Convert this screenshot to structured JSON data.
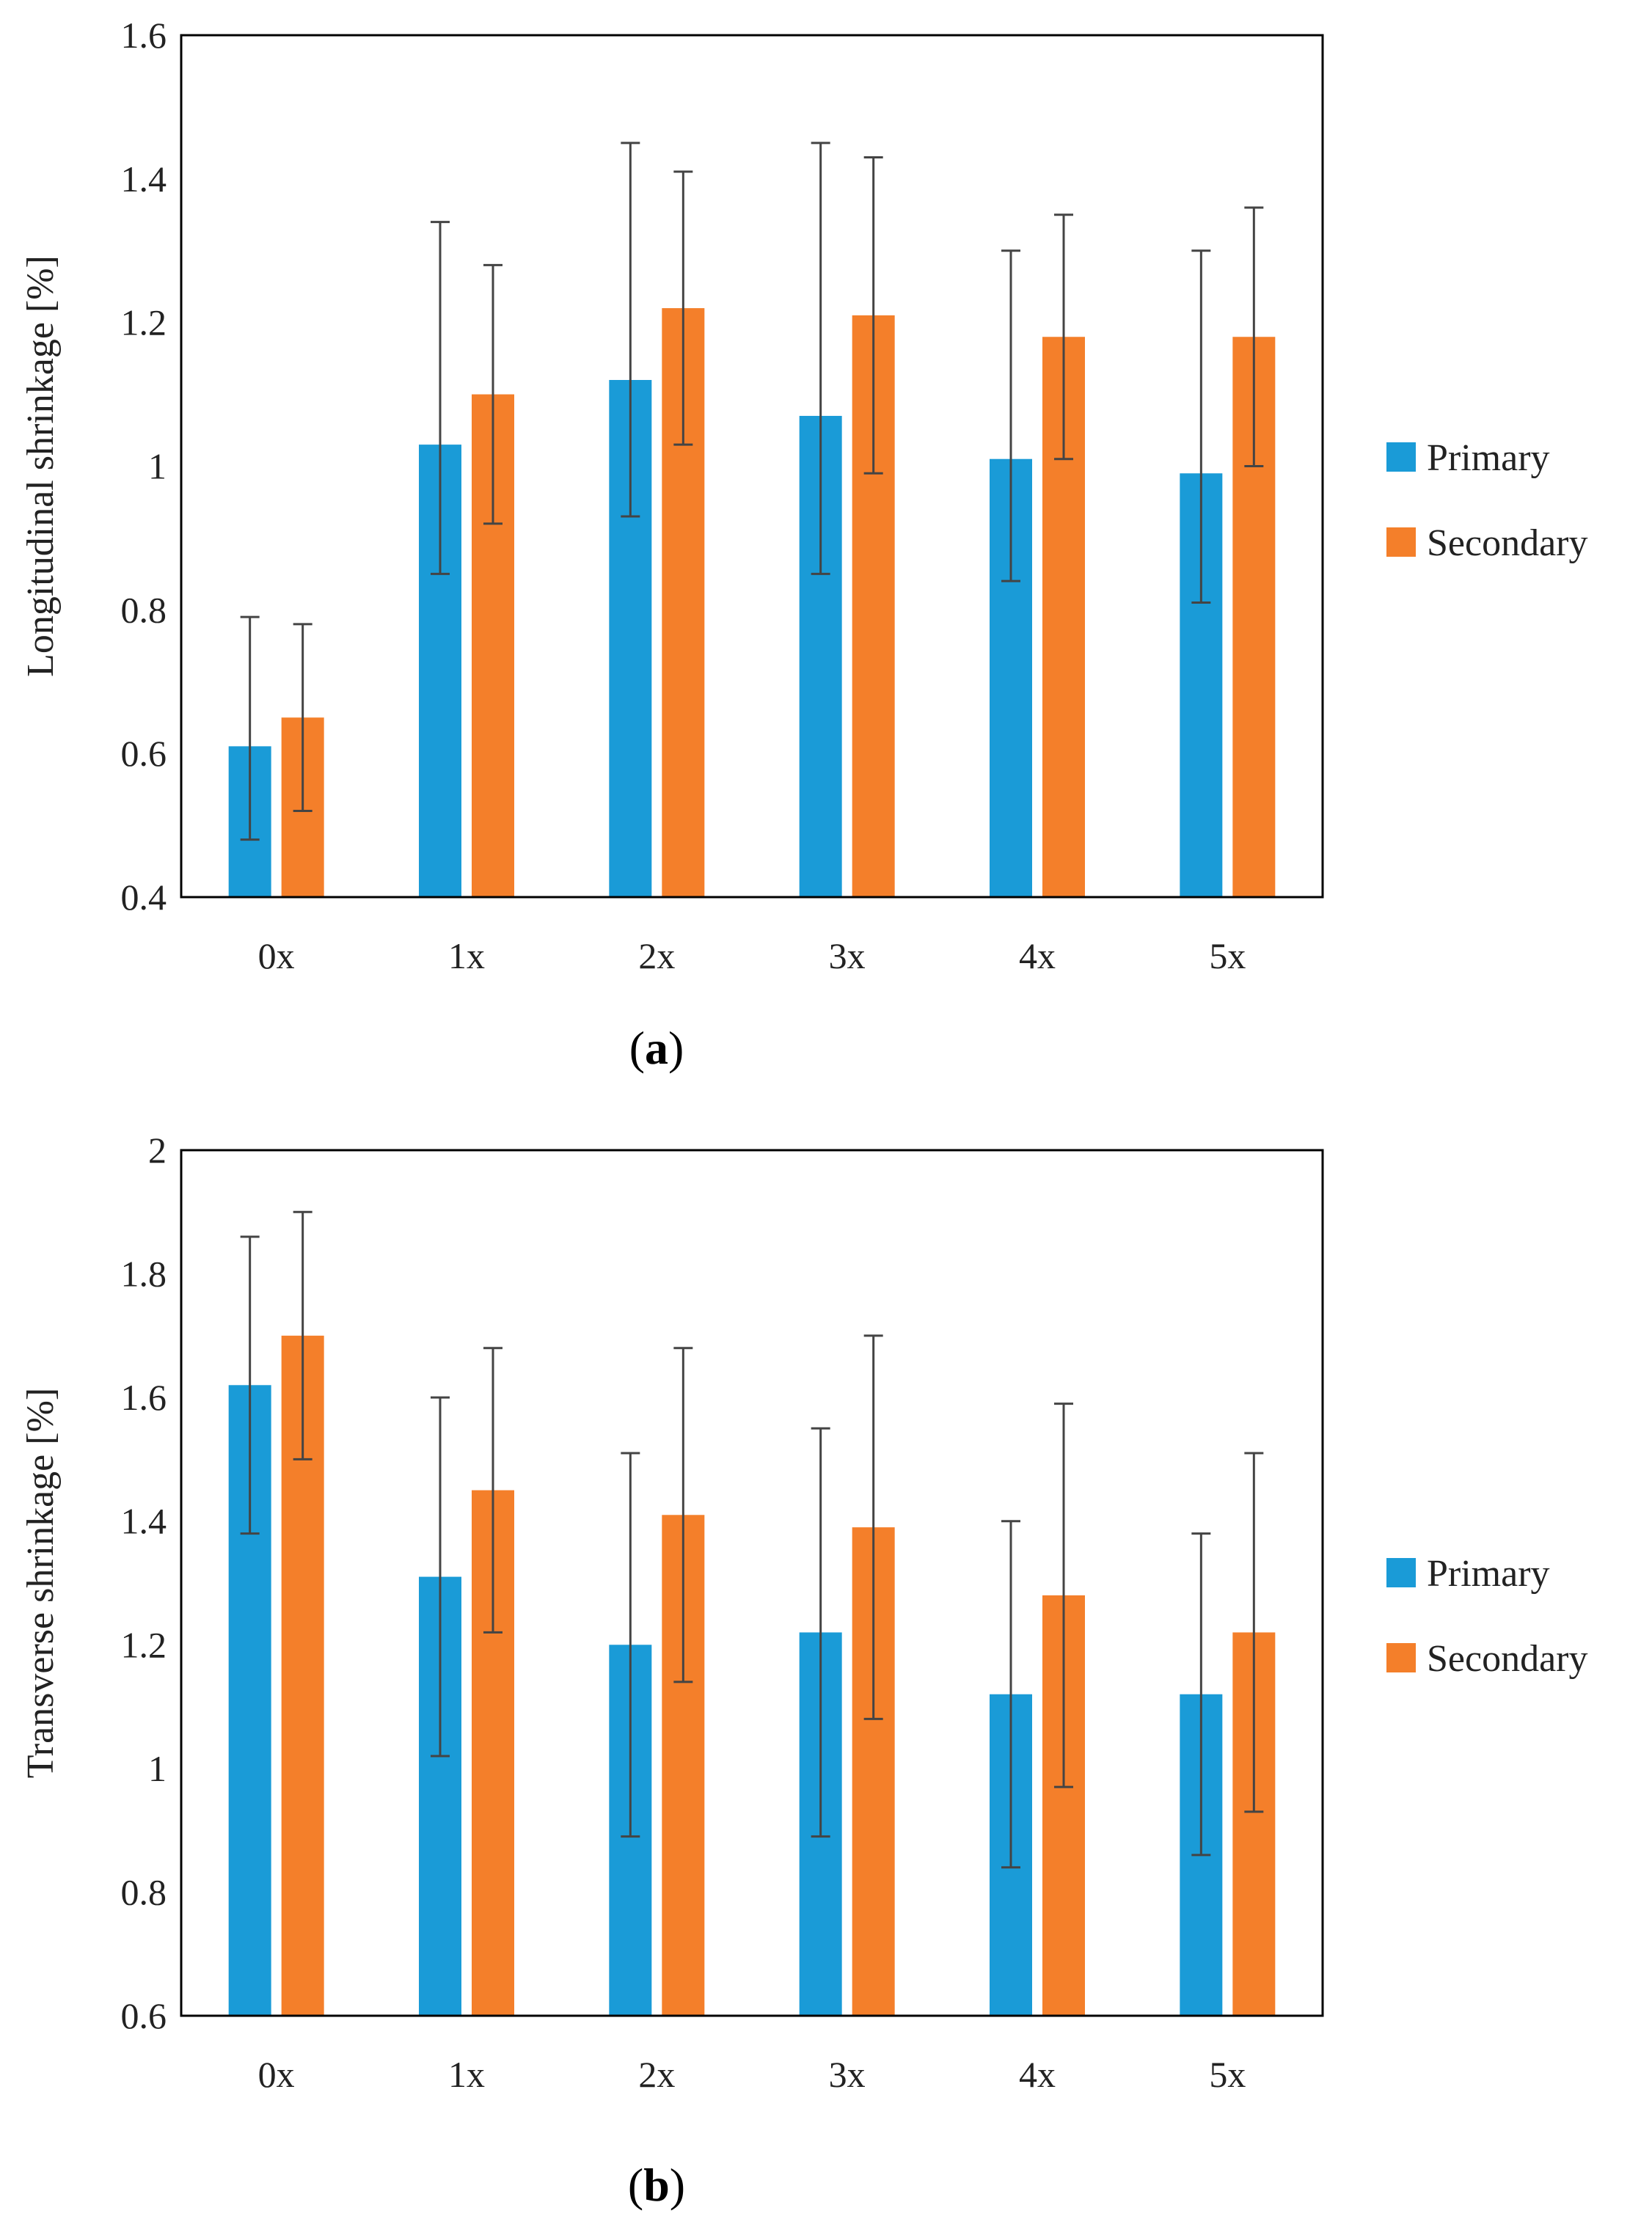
{
  "chart_data": [
    {
      "type": "bar",
      "panel_label": "a",
      "title": "",
      "xlabel": "",
      "ylabel": "Longitudinal shrinkage [%]",
      "ylim": [
        0.4,
        1.6
      ],
      "yticks": [
        0.4,
        0.6,
        0.8,
        1,
        1.2,
        1.4,
        1.6
      ],
      "ytick_labels": [
        "0.4",
        "0.6",
        "0.8",
        "1",
        "1.2",
        "1.4",
        "1.6"
      ],
      "categories": [
        "0x",
        "1x",
        "2x",
        "3x",
        "4x",
        "5x"
      ],
      "grid": false,
      "legend_position": "right",
      "series": [
        {
          "name": "Primary",
          "color": "#1a9bd7",
          "values": [
            0.61,
            1.03,
            1.12,
            1.07,
            1.01,
            0.99
          ],
          "error_low": [
            0.48,
            0.85,
            0.93,
            0.85,
            0.84,
            0.81
          ],
          "error_high": [
            0.79,
            1.34,
            1.45,
            1.45,
            1.3,
            1.3
          ]
        },
        {
          "name": "Secondary",
          "color": "#f47f2a",
          "values": [
            0.65,
            1.1,
            1.22,
            1.21,
            1.18,
            1.18
          ],
          "error_low": [
            0.52,
            0.92,
            1.03,
            0.99,
            1.01,
            1.0
          ],
          "error_high": [
            0.78,
            1.28,
            1.41,
            1.43,
            1.35,
            1.36
          ]
        }
      ]
    },
    {
      "type": "bar",
      "panel_label": "b",
      "title": "",
      "xlabel": "",
      "ylabel": "Transverse shrinkage [%]",
      "ylim": [
        0.6,
        2.0
      ],
      "yticks": [
        0.6,
        0.8,
        1,
        1.2,
        1.4,
        1.6,
        1.8,
        2
      ],
      "ytick_labels": [
        "0.6",
        "0.8",
        "1",
        "1.2",
        "1.4",
        "1.6",
        "1.8",
        "2"
      ],
      "categories": [
        "0x",
        "1x",
        "2x",
        "3x",
        "4x",
        "5x"
      ],
      "grid": false,
      "legend_position": "right",
      "series": [
        {
          "name": "Primary",
          "color": "#1a9bd7",
          "values": [
            1.62,
            1.31,
            1.2,
            1.22,
            1.12,
            1.12
          ],
          "error_low": [
            1.38,
            1.02,
            0.89,
            0.89,
            0.84,
            0.86
          ],
          "error_high": [
            1.86,
            1.6,
            1.51,
            1.55,
            1.4,
            1.38
          ]
        },
        {
          "name": "Secondary",
          "color": "#f47f2a",
          "values": [
            1.7,
            1.45,
            1.41,
            1.39,
            1.28,
            1.22
          ],
          "error_low": [
            1.5,
            1.22,
            1.14,
            1.08,
            0.97,
            0.93
          ],
          "error_high": [
            1.9,
            1.68,
            1.68,
            1.7,
            1.59,
            1.51
          ]
        }
      ]
    }
  ]
}
